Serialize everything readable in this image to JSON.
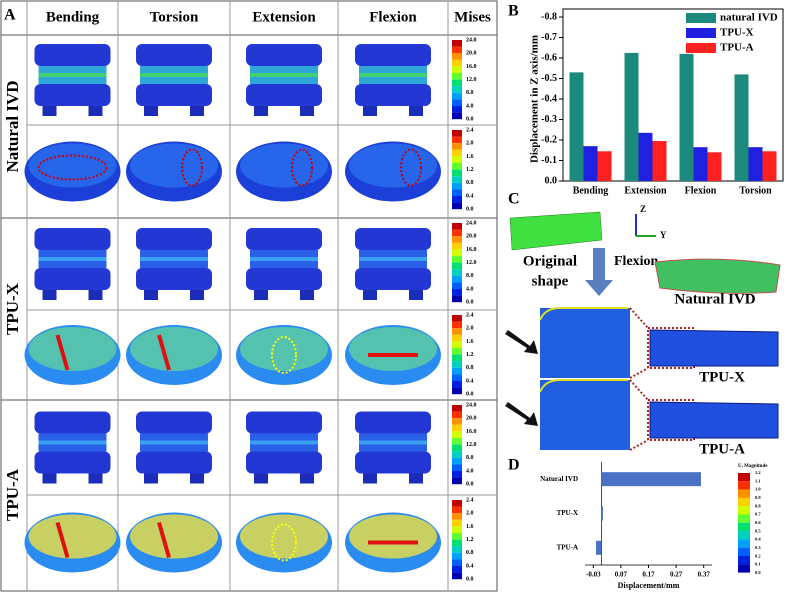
{
  "panel_labels": [
    "A",
    "B",
    "C",
    "D"
  ],
  "panel_a": {
    "columns": [
      "Bending",
      "Torsion",
      "Extension",
      "Flexion",
      "Mises"
    ],
    "rows": [
      "Natural IVD",
      "TPU-X",
      "TPU-A"
    ],
    "scales": [
      [
        "24.0",
        "20.0",
        "16.0",
        "12.0",
        "8.0",
        "4.0",
        "0.0"
      ],
      [
        "2.4",
        "2.0",
        "1.6",
        "1.2",
        "0.8",
        "0.4",
        "0.0"
      ]
    ]
  },
  "chart_data": [
    {
      "type": "bar",
      "ylabel": "Displacement in Z axis/mm",
      "categories": [
        "Bending",
        "Extension",
        "Flexion",
        "Torsion"
      ],
      "series": [
        {
          "name": "natural IVD",
          "color": "#1b8a7c",
          "values": [
            -0.53,
            -0.625,
            -0.62,
            -0.52
          ]
        },
        {
          "name": "TPU-X",
          "color": "#2020e0",
          "values": [
            -0.17,
            -0.235,
            -0.165,
            -0.165
          ]
        },
        {
          "name": "TPU-A",
          "color": "#ff2020",
          "values": [
            -0.145,
            -0.195,
            -0.14,
            -0.145
          ]
        }
      ],
      "ylim": [
        0,
        -0.8
      ],
      "yticks": [
        {
          "value": 0,
          "label": "0.0"
        },
        -0.1,
        -0.2,
        -0.3,
        -0.4,
        -0.5,
        -0.6,
        -0.7,
        -0.8
      ],
      "legend": "upper-right"
    },
    {
      "type": "hbar",
      "xlabel": "Displacement/mm",
      "categories": [
        "Natural IVD",
        "TPU-X",
        "TPU-A"
      ],
      "values": [
        0.36,
        0.005,
        -0.02
      ],
      "color": "#4a72c4",
      "xlim": [
        -0.06,
        0.4
      ],
      "xticks": [
        -0.03,
        0.07,
        0.17,
        0.27,
        0.37
      ],
      "colorbar": {
        "title": "U, Magnitude",
        "labels": [
          "1.2",
          "1.1",
          "1.0",
          "0.9",
          "0.8",
          "0.7",
          "0.6",
          "0.5",
          "0.4",
          "0.3",
          "0.2",
          "0.1",
          "0.0"
        ]
      }
    }
  ],
  "panel_c": {
    "axes": [
      "Z",
      "Y"
    ],
    "original_shape": [
      "Original",
      "shape"
    ],
    "motion": "Flexion",
    "labels": [
      "Natural IVD",
      "TPU-X",
      "TPU-A"
    ]
  }
}
